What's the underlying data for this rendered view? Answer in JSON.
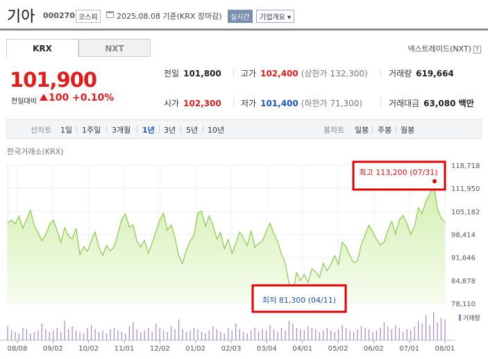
{
  "header": {
    "name": "기아",
    "code": "000270",
    "market": "코스피",
    "date": "2025.08.08 기준(KRX 장마감)",
    "realtime": "실시간",
    "corp_info": "기업개요 ▾"
  },
  "tabs": [
    {
      "label": "KRX"
    },
    {
      "label": "NXT"
    }
  ],
  "nxt_link": "넥스트레이드(NXT)",
  "price": {
    "current": "101,900",
    "change_label": "전일대비",
    "change": "100",
    "change_pct": "+0.10%"
  },
  "stats": {
    "prev_label": "전일",
    "prev": "101,800",
    "high_label": "고가",
    "high": "102,400",
    "upper": "(상한가 132,300)",
    "volume_label": "거래량",
    "volume": "619,664",
    "open_label": "시가",
    "open": "102,300",
    "low_label": "저가",
    "low": "101,400",
    "lower": "(하한가 71,300)",
    "amount_label": "거래대금",
    "amount": "63,080 백만"
  },
  "period_bar": {
    "line_label": "선차트",
    "line_items": [
      "1일",
      "1주일",
      "3개월",
      "1년",
      "3년",
      "5년",
      "10년"
    ],
    "selected": "1년",
    "candle_label": "봉차트",
    "candle_items": [
      "일봉",
      "주봉",
      "월봉"
    ]
  },
  "chart_source": "한국거래소(KRX)",
  "colors": {
    "up": "#e21b1b",
    "down": "#1a55c9",
    "line": "#7ec83a",
    "fill": "#e4f5cc"
  },
  "chart_data": {
    "type": "area",
    "y_ticks": [
      "118,718",
      "111,950",
      "105,182",
      "98,414",
      "91,646",
      "84,878",
      "78,110"
    ],
    "ylim": [
      78110,
      118718
    ],
    "x_ticks": [
      "08/08",
      "09/02",
      "10/02",
      "11/01",
      "12/02",
      "01/02",
      "02/03",
      "03/04",
      "04/01",
      "05/02",
      "06/02",
      "07/01",
      "08/01"
    ],
    "series": [
      {
        "values": [
          101800,
          102600,
          101500,
          103800,
          100200,
          102900,
          105500,
          101000,
          99000,
          96500,
          98300,
          101200,
          102600,
          99600,
          96000,
          100400,
          98000,
          97000,
          100200,
          92500,
          94800,
          93400,
          96600,
          99100,
          94700,
          92200,
          95200,
          93600,
          94800,
          98600,
          102800,
          104400,
          100600,
          101200,
          96400,
          94700,
          96700,
          92800,
          95900,
          99300,
          102600,
          104600,
          99600,
          101200,
          97500,
          92100,
          89900,
          93800,
          96500,
          98200,
          104700,
          105300,
          100800,
          103800,
          101100,
          97000,
          99000,
          94100,
          96900,
          92800,
          95800,
          99100,
          97400,
          95000,
          99500,
          94600,
          95800,
          96400,
          99100,
          101700,
          98600,
          96300,
          92700,
          89900,
          84000,
          81300,
          87200,
          84800,
          86700,
          84300,
          88300,
          87400,
          85800,
          89900,
          87700,
          89600,
          92200,
          89600,
          96100,
          94700,
          92200,
          90100,
          90600,
          95400,
          98300,
          101100,
          99200,
          97000,
          95300,
          96100,
          99600,
          102200,
          98500,
          102600,
          104000,
          101700,
          98400,
          100800,
          106200,
          104500,
          108200,
          110300,
          113200,
          106100,
          103200,
          101900
        ],
        "volume": [
          10,
          7,
          6,
          5,
          9,
          8,
          5,
          6,
          7,
          12,
          8,
          6,
          7,
          9,
          6,
          14,
          8,
          10,
          7,
          6,
          5,
          9,
          11,
          8,
          6,
          7,
          5,
          8,
          9,
          7,
          6,
          5,
          10,
          13,
          8,
          6,
          7,
          9,
          6,
          12,
          9,
          7,
          6,
          10,
          8,
          15,
          8,
          6,
          7,
          9,
          8,
          6,
          5,
          7,
          10,
          8,
          6,
          5,
          9,
          7,
          12,
          8,
          6,
          5,
          7,
          9,
          6,
          8,
          7,
          11,
          8,
          6,
          9,
          7,
          14,
          12,
          9,
          8,
          7,
          10,
          9,
          8,
          6,
          7,
          9,
          7,
          6,
          8,
          11,
          9,
          7,
          6,
          8,
          10,
          9,
          8,
          6,
          7,
          9,
          13,
          10,
          8,
          11,
          9,
          6,
          8,
          7,
          10,
          14,
          12,
          18,
          11,
          20,
          13,
          16,
          15
        ]
      }
    ],
    "high": {
      "label": "최고 113,200 (07/31)",
      "index": 112,
      "value": 113200
    },
    "low": {
      "label": "최저 81,300 (04/11)",
      "index": 75,
      "value": 81300
    },
    "volume_label": "거래량"
  }
}
